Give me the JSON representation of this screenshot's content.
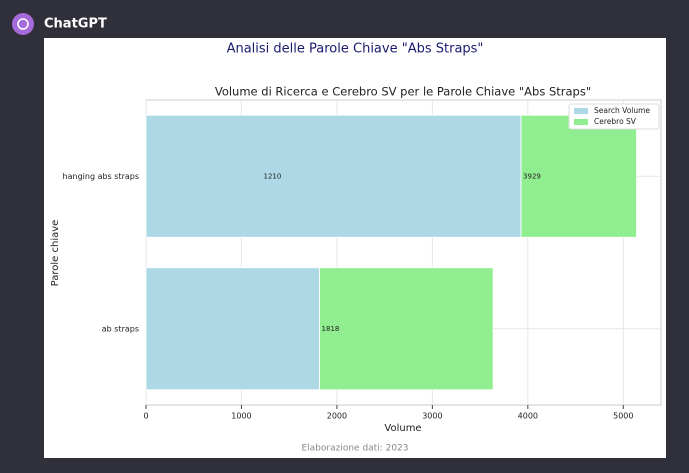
{
  "app": {
    "name": "ChatGPT"
  },
  "chart_data": {
    "type": "stacked-barh",
    "title": "Analisi delle Parole Chiave \"Abs Straps\"",
    "subtitle": "Volume di Ricerca e Cerebro SV per le Parole Chiave \"Abs Straps\"",
    "xlabel": "Volume",
    "ylabel": "Parole chiave",
    "footer": "Elaborazione dati: 2023",
    "categories": [
      "hanging abs straps",
      "ab straps"
    ],
    "series": [
      {
        "name": "Search Volume",
        "color": "#add8e6",
        "values": [
          3929,
          1818
        ]
      },
      {
        "name": "Cerebro SV",
        "color": "#90ee90",
        "values": [
          1210,
          1818
        ]
      }
    ],
    "annotations": [
      {
        "text": "1210",
        "x": 1210,
        "category": 0
      },
      {
        "text": "3929",
        "x": 3929,
        "category": 0
      },
      {
        "text": "1818",
        "x": 1818,
        "category": 1
      }
    ],
    "xlim": [
      0,
      5395
    ],
    "xticks": [
      0,
      1000,
      2000,
      3000,
      4000,
      5000
    ],
    "grid": true,
    "legend": "upper right"
  }
}
